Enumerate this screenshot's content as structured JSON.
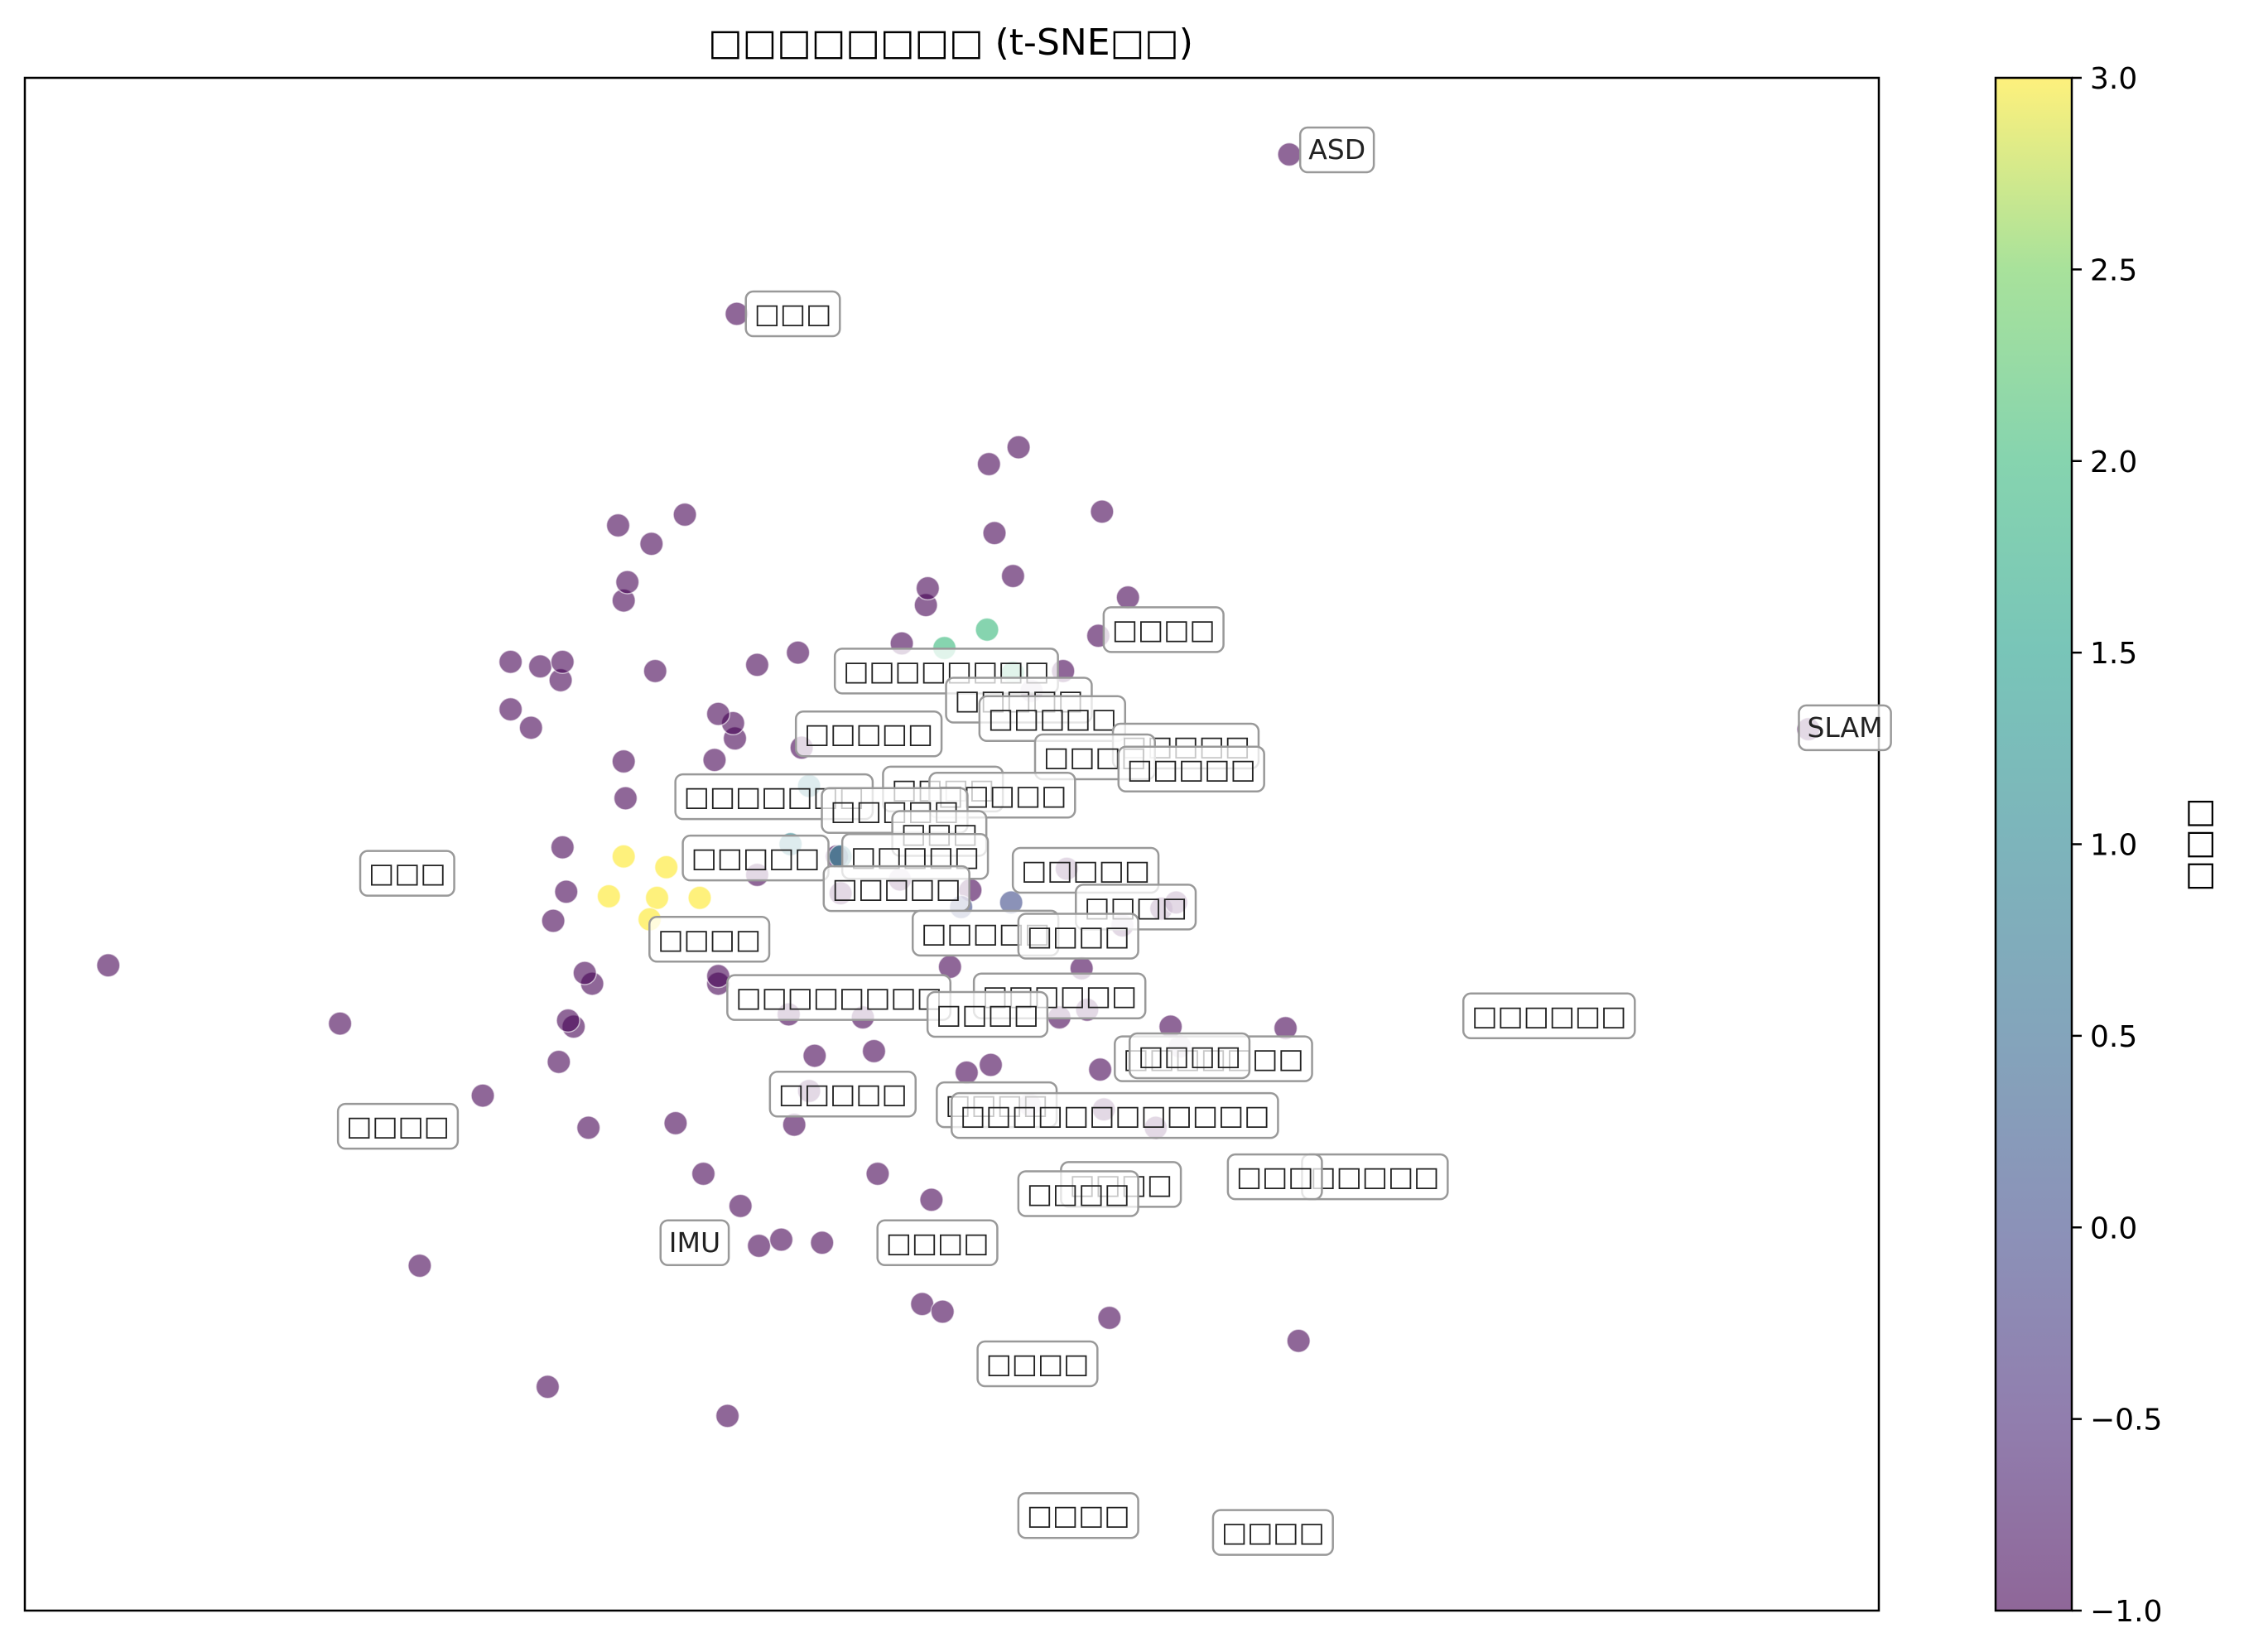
{
  "chart_data": {
    "type": "scatter",
    "title": "□□□□□□□□ (t-SNE□□)",
    "xlabel": "",
    "ylabel": "",
    "xlim": [
      0,
      100
    ],
    "ylim": [
      0,
      100
    ],
    "grid": false,
    "colormap": "viridis",
    "point_alpha": 0.6,
    "colorbar": {
      "label": "□□□",
      "min": -1.0,
      "max": 3.0,
      "ticks": [
        "3.0",
        "2.5",
        "2.0",
        "1.5",
        "1.0",
        "0.5",
        "0.0",
        "−0.5",
        "−1.0"
      ],
      "tick_values": [
        3.0,
        2.5,
        2.0,
        1.5,
        1.0,
        0.5,
        0.0,
        -0.5,
        -1.0
      ]
    },
    "points": [
      [
        4.5,
        42.1,
        -1
      ],
      [
        21.3,
        22.5,
        -1
      ],
      [
        28.2,
        14.6,
        -1
      ],
      [
        37.9,
        12.7,
        -1.5
      ],
      [
        68.7,
        17.6,
        -1.5
      ],
      [
        58.5,
        19.1,
        -1
      ],
      [
        17.0,
        38.3,
        -1
      ],
      [
        26.2,
        61.9,
        -1
      ],
      [
        26.2,
        58.8,
        -1
      ],
      [
        27.8,
        61.6,
        -1
      ],
      [
        27.3,
        57.6,
        -1
      ],
      [
        28.9,
        60.7,
        -1
      ],
      [
        29.0,
        61.9,
        -1
      ],
      [
        34.0,
        61.3,
        -1
      ],
      [
        32.3,
        65.9,
        -1
      ],
      [
        32.0,
        70.8,
        -1
      ],
      [
        33.8,
        69.6,
        -1
      ],
      [
        32.5,
        67.1,
        -1
      ],
      [
        35.6,
        71.5,
        -1
      ],
      [
        38.3,
        56.9,
        -1
      ],
      [
        37.2,
        55.5,
        -1
      ],
      [
        38.2,
        57.9,
        -1
      ],
      [
        37.4,
        58.5,
        -1
      ],
      [
        32.3,
        55.4,
        -1
      ],
      [
        32.4,
        53.0,
        -1
      ],
      [
        41.7,
        62.5,
        -1
      ],
      [
        41.9,
        56.3,
        -1
      ],
      [
        48.6,
        65.6,
        -1
      ],
      [
        47.3,
        63.1,
        -1
      ],
      [
        48.7,
        66.7,
        -1
      ],
      [
        56.0,
        61.3,
        -1
      ],
      [
        58.1,
        71.7,
        -1
      ],
      [
        59.5,
        66.1,
        -1
      ],
      [
        49.9,
        42.0,
        -1
      ],
      [
        52.1,
        35.6,
        -1
      ],
      [
        54.2,
        33.0,
        -1
      ],
      [
        24.7,
        33.6,
        -1
      ],
      [
        28.8,
        35.8,
        -1
      ],
      [
        29.6,
        38.1,
        -1
      ],
      [
        30.6,
        40.9,
        -1
      ],
      [
        29.2,
        46.9,
        -1
      ],
      [
        29.0,
        49.8,
        -1
      ],
      [
        28.5,
        45.0,
        -1
      ],
      [
        37.4,
        40.9,
        -1
      ],
      [
        37.4,
        41.4,
        -1
      ],
      [
        36.6,
        28.5,
        -1
      ],
      [
        38.6,
        26.4,
        -1
      ],
      [
        39.6,
        23.8,
        -1
      ],
      [
        40.8,
        24.2,
        -1
      ],
      [
        46.0,
        28.5,
        -1
      ],
      [
        48.9,
        26.8,
        -1
      ],
      [
        48.4,
        20.0,
        -1
      ],
      [
        49.5,
        19.5,
        -1
      ],
      [
        30.4,
        31.5,
        -1
      ],
      [
        35.1,
        31.8,
        -1
      ],
      [
        55.8,
        38.7,
        -1
      ],
      [
        57.3,
        39.2,
        -1
      ],
      [
        59.2,
        44.7,
        -1
      ],
      [
        61.3,
        45.8,
        -1
      ],
      [
        62.1,
        46.2,
        -1
      ],
      [
        57.0,
        41.9,
        -1
      ],
      [
        58.2,
        32.7,
        -1
      ],
      [
        61.0,
        31.5,
        -1
      ],
      [
        62.3,
        36.8,
        -1
      ],
      [
        61.8,
        38.1,
        -1
      ],
      [
        58.0,
        35.3,
        -1
      ],
      [
        68.0,
        38.0,
        -1
      ],
      [
        96.2,
        57.5,
        -1
      ],
      [
        52.3,
        70.3,
        -1
      ],
      [
        53.3,
        67.5,
        -1
      ],
      [
        41.5,
        31.7,
        -1
      ],
      [
        43.0,
        24.0,
        -1
      ],
      [
        45.8,
        36.5,
        -1
      ],
      [
        39.5,
        48.0,
        -1
      ],
      [
        43.8,
        49.2,
        -1
      ],
      [
        39.5,
        61.7,
        -1
      ],
      [
        52.0,
        74.8,
        -1
      ],
      [
        53.6,
        75.9,
        -1
      ],
      [
        29.3,
        38.5,
        -1
      ],
      [
        42.6,
        36.2,
        -1
      ],
      [
        41.2,
        38.9,
        -1
      ],
      [
        42.3,
        33.9,
        -1
      ],
      [
        45.2,
        38.7,
        -1
      ],
      [
        50.8,
        35.1,
        -1
      ],
      [
        44.0,
        46.8,
        -1
      ],
      [
        56.2,
        48.4,
        -1
      ],
      [
        30.2,
        41.6,
        -1
      ],
      [
        47.2,
        47.7,
        -1
      ],
      [
        51.0,
        47.0,
        -1
      ],
      [
        32.3,
        49.2,
        3
      ],
      [
        31.5,
        46.6,
        3
      ],
      [
        34.1,
        46.5,
        3
      ],
      [
        33.7,
        45.1,
        3
      ],
      [
        36.4,
        46.5,
        3
      ],
      [
        34.6,
        48.5,
        3
      ],
      [
        44.0,
        49.2,
        1
      ],
      [
        41.3,
        50.0,
        1
      ],
      [
        42.3,
        53.8,
        1
      ],
      [
        49.6,
        62.8,
        2
      ],
      [
        51.9,
        64.0,
        2
      ],
      [
        53.3,
        61.2,
        2
      ],
      [
        50.5,
        45.9,
        0
      ],
      [
        53.2,
        46.2,
        0
      ],
      [
        38.4,
        84.6,
        -1
      ],
      [
        68.2,
        95.0,
        -1
      ],
      [
        57.9,
        63.6,
        -1
      ],
      [
        54.3,
        60.0,
        -1
      ]
    ],
    "annotations": [
      {
        "x": 68.7,
        "y": 95.3,
        "text": "ASD"
      },
      {
        "x": 38.8,
        "y": 84.6,
        "text": "□□□"
      },
      {
        "x": 58.1,
        "y": 64.0,
        "text": "□□□□"
      },
      {
        "x": 95.6,
        "y": 57.6,
        "text": "SLAM"
      },
      {
        "x": 43.6,
        "y": 61.3,
        "text": "□□□□□□□□"
      },
      {
        "x": 49.6,
        "y": 59.4,
        "text": "□□□□□"
      },
      {
        "x": 51.4,
        "y": 58.2,
        "text": "□□□□□"
      },
      {
        "x": 41.5,
        "y": 57.2,
        "text": "□□□□□"
      },
      {
        "x": 58.6,
        "y": 56.4,
        "text": "□□□□□"
      },
      {
        "x": 54.4,
        "y": 55.7,
        "text": "□□□□"
      },
      {
        "x": 58.9,
        "y": 54.9,
        "text": "□□□□□"
      },
      {
        "x": 46.2,
        "y": 53.6,
        "text": "□□□□"
      },
      {
        "x": 48.7,
        "y": 53.2,
        "text": "□□□□□"
      },
      {
        "x": 35.0,
        "y": 53.1,
        "text": "□□□□□□□"
      },
      {
        "x": 42.9,
        "y": 52.2,
        "text": "□□□□□"
      },
      {
        "x": 46.7,
        "y": 50.7,
        "text": "□□□"
      },
      {
        "x": 44.0,
        "y": 49.2,
        "text": "□□□□□"
      },
      {
        "x": 18.0,
        "y": 48.1,
        "text": "□□□"
      },
      {
        "x": 35.4,
        "y": 49.1,
        "text": "□□□□□"
      },
      {
        "x": 53.2,
        "y": 48.3,
        "text": "□□□□□"
      },
      {
        "x": 43.0,
        "y": 47.1,
        "text": "□□□□□"
      },
      {
        "x": 56.6,
        "y": 45.9,
        "text": "□□□□"
      },
      {
        "x": 47.8,
        "y": 44.2,
        "text": "□□□□□"
      },
      {
        "x": 33.6,
        "y": 43.8,
        "text": "□□□□"
      },
      {
        "x": 53.5,
        "y": 44.0,
        "text": "□□□□"
      },
      {
        "x": 37.8,
        "y": 40.0,
        "text": "□□□□□□□□"
      },
      {
        "x": 51.1,
        "y": 40.1,
        "text": "□□□□□□"
      },
      {
        "x": 48.6,
        "y": 38.9,
        "text": "□□□□"
      },
      {
        "x": 77.5,
        "y": 38.8,
        "text": "□□□□□□"
      },
      {
        "x": 58.7,
        "y": 36.0,
        "text": "□□□□□□□"
      },
      {
        "x": 59.5,
        "y": 36.2,
        "text": "□□□□"
      },
      {
        "x": 40.1,
        "y": 33.7,
        "text": "□□□□□"
      },
      {
        "x": 49.1,
        "y": 33.0,
        "text": "□□□□"
      },
      {
        "x": 49.9,
        "y": 32.3,
        "text": "□□□□□□□□□□□□"
      },
      {
        "x": 16.8,
        "y": 31.6,
        "text": "□□□□"
      },
      {
        "x": 55.8,
        "y": 27.8,
        "text": "□□□□"
      },
      {
        "x": 53.5,
        "y": 27.2,
        "text": "□□□□"
      },
      {
        "x": 68.8,
        "y": 28.3,
        "text": "□□□□□"
      },
      {
        "x": 64.8,
        "y": 28.3,
        "text": "□□□"
      },
      {
        "x": 34.2,
        "y": 24.0,
        "text": "IMU"
      },
      {
        "x": 45.9,
        "y": 24.0,
        "text": "□□□□"
      },
      {
        "x": 51.3,
        "y": 16.1,
        "text": "□□□□"
      },
      {
        "x": 53.5,
        "y": 6.2,
        "text": "□□□□"
      },
      {
        "x": 64.0,
        "y": 5.1,
        "text": "□□□□"
      }
    ]
  }
}
